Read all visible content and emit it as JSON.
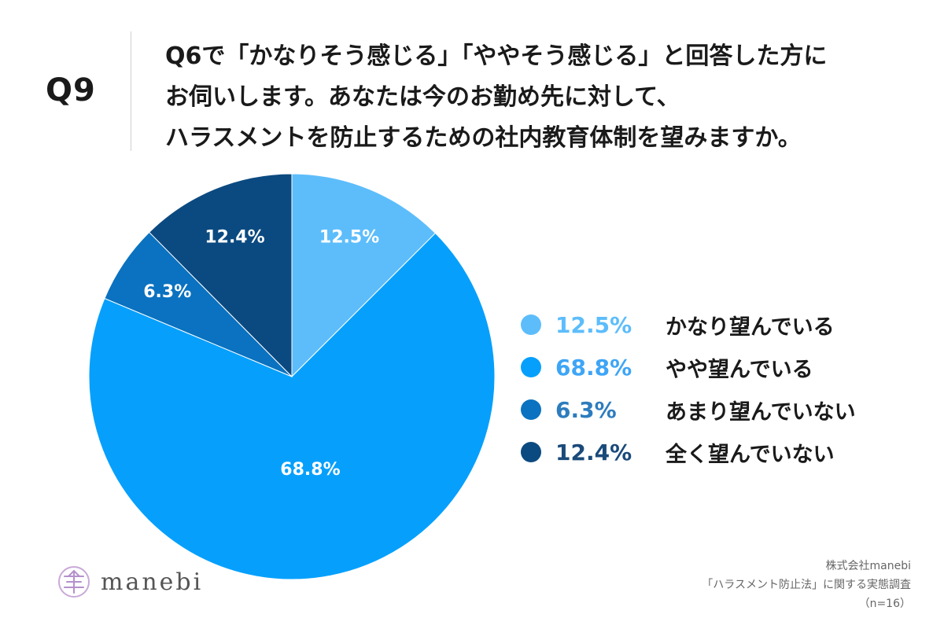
{
  "header": {
    "q_label": "Q9",
    "question_lines": [
      "Q6で「かなりそう感じる」「ややそう感じる」と回答した方に",
      "お伺いします。あなたは今のお勤め先に対して、",
      "ハラスメントを防止するための社内教育体制を望みますか。"
    ]
  },
  "chart_data": {
    "type": "pie",
    "start_angle": "12 o'clock",
    "direction": "clockwise",
    "slices": [
      {
        "label": "かなり望んでいる",
        "value": 12.5,
        "display": "12.5%",
        "color": "#5dbdfb",
        "legend_text_color": "#5dbdfb"
      },
      {
        "label": "やや望んでいる",
        "value": 68.8,
        "display": "68.8%",
        "color": "#06a0fc",
        "legend_text_color": "#3ea5f6"
      },
      {
        "label": "あまり望んでいない",
        "value": 6.3,
        "display": "6.3%",
        "color": "#0a72c0",
        "legend_text_color": "#2d7cbe"
      },
      {
        "label": "全く望んでいない",
        "value": 12.4,
        "display": "12.4%",
        "color": "#0b4a80",
        "legend_text_color": "#1a4a7a"
      }
    ]
  },
  "brand": {
    "logo_text": "manebi"
  },
  "footer": {
    "company": "株式会社manebi",
    "survey": "「ハラスメント防止法」に関する実態調査",
    "sample": "（n=16）"
  }
}
